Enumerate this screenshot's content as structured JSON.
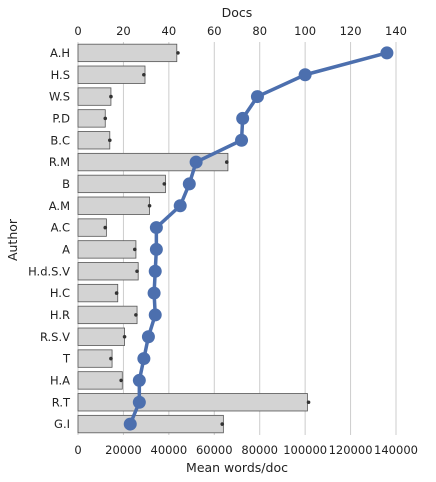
{
  "chart_data": {
    "type": "bar",
    "orientation": "horizontal",
    "categories": [
      "A.H",
      "H.S",
      "W.S",
      "P.D",
      "B.C",
      "R.M",
      "B",
      "A.M",
      "A.C",
      "A",
      "H.d.S.V",
      "H.C",
      "H.R",
      "R.S.V",
      "T",
      "H.A",
      "R.T",
      "G.I"
    ],
    "series": [
      {
        "kind": "bar",
        "axis": "bottom",
        "values": [
          43500,
          29500,
          14500,
          12000,
          14000,
          66000,
          38500,
          31500,
          12500,
          25500,
          26500,
          17500,
          26000,
          20500,
          15000,
          19500,
          101000,
          64000
        ],
        "error_dots": [
          44000,
          29000,
          14500,
          12000,
          14000,
          65500,
          38000,
          31500,
          12000,
          25000,
          26000,
          17000,
          25500,
          20500,
          14500,
          19000,
          101500,
          63500
        ]
      },
      {
        "kind": "line",
        "axis": "top",
        "values": [
          136,
          100,
          79,
          72.5,
          72,
          52,
          49,
          45,
          34.5,
          34.5,
          34,
          33.5,
          34,
          31,
          29,
          27,
          27,
          23
        ]
      }
    ],
    "xlabel": "Mean words/doc",
    "x2label": "Docs",
    "ylabel": "Author",
    "xlim": [
      0,
      140000
    ],
    "x2lim": [
      0,
      140
    ],
    "xticks": [
      0,
      20000,
      40000,
      60000,
      80000,
      100000,
      120000,
      140000
    ],
    "x2ticks": [
      0,
      20,
      40,
      60,
      80,
      100,
      120,
      140
    ],
    "grid": "vertical",
    "colors": {
      "bar_fill": "#d3d3d3",
      "bar_edge": "#555555",
      "line": "#4c6fae",
      "dot": "#333333",
      "grid": "#cccccc"
    }
  }
}
